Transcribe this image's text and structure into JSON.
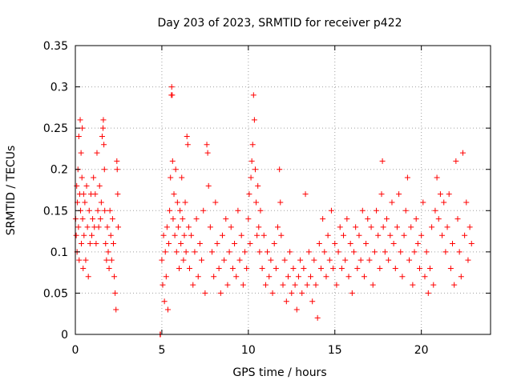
{
  "chart_data": {
    "type": "scatter",
    "title": "Day 203 of 2023, SRMTID for receiver p422",
    "xlabel": "GPS time / hours",
    "ylabel": "SRMTID / TECUs",
    "xlim": [
      0,
      24
    ],
    "ylim": [
      0,
      0.35
    ],
    "xticks": [
      0,
      5,
      10,
      15,
      20
    ],
    "xtick_labels": [
      "0",
      "5",
      "10",
      "15",
      "20"
    ],
    "yticks": [
      0,
      0.05,
      0.1,
      0.15,
      0.2,
      0.25,
      0.3,
      0.35
    ],
    "ytick_labels": [
      "0",
      "0.05",
      "0.1",
      "0.15",
      "0.2",
      "0.25",
      "0.3",
      "0.35"
    ],
    "grid": true,
    "marker": "+",
    "color": "#ff0000",
    "series": [
      {
        "name": "SRMTID",
        "points": [
          [
            0.02,
            0.14
          ],
          [
            0.05,
            0.12
          ],
          [
            0.08,
            0.18
          ],
          [
            0.1,
            0.1
          ],
          [
            0.12,
            0.16
          ],
          [
            0.15,
            0.2
          ],
          [
            0.18,
            0.13
          ],
          [
            0.2,
            0.24
          ],
          [
            0.22,
            0.09
          ],
          [
            0.25,
            0.17
          ],
          [
            0.28,
            0.26
          ],
          [
            0.3,
            0.15
          ],
          [
            0.33,
            0.22
          ],
          [
            0.35,
            0.11
          ],
          [
            0.38,
            0.19
          ],
          [
            0.4,
            0.25
          ],
          [
            0.42,
            0.14
          ],
          [
            0.45,
            0.08
          ],
          [
            0.48,
            0.17
          ],
          [
            0.5,
            0.12
          ],
          [
            0.55,
            0.16
          ],
          [
            0.6,
            0.09
          ],
          [
            0.65,
            0.18
          ],
          [
            0.7,
            0.13
          ],
          [
            0.75,
            0.07
          ],
          [
            0.8,
            0.15
          ],
          [
            0.85,
            0.11
          ],
          [
            0.9,
            0.17
          ],
          [
            0.95,
            0.12
          ],
          [
            1.0,
            0.14
          ],
          [
            1.05,
            0.19
          ],
          [
            1.1,
            0.13
          ],
          [
            1.15,
            0.17
          ],
          [
            1.2,
            0.11
          ],
          [
            1.25,
            0.22
          ],
          [
            1.3,
            0.15
          ],
          [
            1.35,
            0.13
          ],
          [
            1.4,
            0.18
          ],
          [
            1.45,
            0.14
          ],
          [
            1.5,
            0.16
          ],
          [
            1.55,
            0.24
          ],
          [
            1.6,
            0.25
          ],
          [
            1.62,
            0.26
          ],
          [
            1.65,
            0.23
          ],
          [
            1.68,
            0.2
          ],
          [
            1.7,
            0.15
          ],
          [
            1.75,
            0.11
          ],
          [
            1.8,
            0.09
          ],
          [
            1.85,
            0.13
          ],
          [
            1.9,
            0.1
          ],
          [
            1.95,
            0.08
          ],
          [
            2.0,
            0.15
          ],
          [
            2.05,
            0.12
          ],
          [
            2.1,
            0.09
          ],
          [
            2.15,
            0.14
          ],
          [
            2.2,
            0.11
          ],
          [
            2.25,
            0.07
          ],
          [
            2.3,
            0.05
          ],
          [
            2.35,
            0.03
          ],
          [
            2.4,
            0.21
          ],
          [
            2.42,
            0.2
          ],
          [
            2.45,
            0.17
          ],
          [
            2.48,
            0.13
          ],
          [
            4.9,
            0.0
          ],
          [
            4.92,
            0.0
          ],
          [
            5.0,
            0.09
          ],
          [
            5.05,
            0.06
          ],
          [
            5.1,
            0.12
          ],
          [
            5.15,
            0.04
          ],
          [
            5.2,
            0.1
          ],
          [
            5.25,
            0.07
          ],
          [
            5.3,
            0.13
          ],
          [
            5.35,
            0.03
          ],
          [
            5.4,
            0.11
          ],
          [
            5.45,
            0.15
          ],
          [
            5.5,
            0.19
          ],
          [
            5.55,
            0.29
          ],
          [
            5.57,
            0.3
          ],
          [
            5.6,
            0.29
          ],
          [
            5.62,
            0.21
          ],
          [
            5.65,
            0.14
          ],
          [
            5.7,
            0.17
          ],
          [
            5.75,
            0.12
          ],
          [
            5.8,
            0.2
          ],
          [
            5.85,
            0.1
          ],
          [
            5.9,
            0.16
          ],
          [
            5.95,
            0.13
          ],
          [
            6.0,
            0.08
          ],
          [
            6.05,
            0.15
          ],
          [
            6.1,
            0.11
          ],
          [
            6.15,
            0.19
          ],
          [
            6.2,
            0.14
          ],
          [
            6.25,
            0.09
          ],
          [
            6.3,
            0.12
          ],
          [
            6.35,
            0.16
          ],
          [
            6.4,
            0.1
          ],
          [
            6.45,
            0.24
          ],
          [
            6.5,
            0.23
          ],
          [
            6.55,
            0.13
          ],
          [
            6.6,
            0.08
          ],
          [
            6.7,
            0.12
          ],
          [
            6.8,
            0.06
          ],
          [
            6.9,
            0.1
          ],
          [
            7.0,
            0.14
          ],
          [
            7.1,
            0.07
          ],
          [
            7.2,
            0.11
          ],
          [
            7.3,
            0.09
          ],
          [
            7.4,
            0.15
          ],
          [
            7.5,
            0.05
          ],
          [
            7.6,
            0.23
          ],
          [
            7.65,
            0.22
          ],
          [
            7.7,
            0.18
          ],
          [
            7.8,
            0.13
          ],
          [
            7.9,
            0.1
          ],
          [
            8.0,
            0.07
          ],
          [
            8.1,
            0.16
          ],
          [
            8.2,
            0.11
          ],
          [
            8.3,
            0.08
          ],
          [
            8.4,
            0.05
          ],
          [
            8.5,
            0.12
          ],
          [
            8.6,
            0.09
          ],
          [
            8.7,
            0.14
          ],
          [
            8.8,
            0.06
          ],
          [
            8.9,
            0.1
          ],
          [
            9.0,
            0.13
          ],
          [
            9.1,
            0.08
          ],
          [
            9.2,
            0.11
          ],
          [
            9.3,
            0.07
          ],
          [
            9.4,
            0.15
          ],
          [
            9.5,
            0.09
          ],
          [
            9.6,
            0.12
          ],
          [
            9.7,
            0.06
          ],
          [
            9.8,
            0.1
          ],
          [
            9.9,
            0.08
          ],
          [
            10.0,
            0.14
          ],
          [
            10.05,
            0.17
          ],
          [
            10.1,
            0.11
          ],
          [
            10.15,
            0.19
          ],
          [
            10.2,
            0.21
          ],
          [
            10.25,
            0.23
          ],
          [
            10.3,
            0.29
          ],
          [
            10.35,
            0.26
          ],
          [
            10.4,
            0.2
          ],
          [
            10.45,
            0.16
          ],
          [
            10.5,
            0.12
          ],
          [
            10.55,
            0.18
          ],
          [
            10.6,
            0.13
          ],
          [
            10.65,
            0.1
          ],
          [
            10.7,
            0.15
          ],
          [
            10.8,
            0.08
          ],
          [
            10.9,
            0.12
          ],
          [
            11.0,
            0.06
          ],
          [
            11.1,
            0.1
          ],
          [
            11.2,
            0.07
          ],
          [
            11.3,
            0.09
          ],
          [
            11.4,
            0.05
          ],
          [
            11.5,
            0.11
          ],
          [
            11.6,
            0.08
          ],
          [
            11.7,
            0.13
          ],
          [
            11.8,
            0.2
          ],
          [
            11.85,
            0.16
          ],
          [
            11.9,
            0.12
          ],
          [
            12.0,
            0.06
          ],
          [
            12.1,
            0.09
          ],
          [
            12.2,
            0.04
          ],
          [
            12.3,
            0.07
          ],
          [
            12.4,
            0.1
          ],
          [
            12.5,
            0.05
          ],
          [
            12.6,
            0.08
          ],
          [
            12.7,
            0.06
          ],
          [
            12.8,
            0.03
          ],
          [
            12.9,
            0.07
          ],
          [
            13.0,
            0.09
          ],
          [
            13.1,
            0.05
          ],
          [
            13.2,
            0.08
          ],
          [
            13.3,
            0.17
          ],
          [
            13.4,
            0.06
          ],
          [
            13.5,
            0.1
          ],
          [
            13.6,
            0.07
          ],
          [
            13.7,
            0.04
          ],
          [
            13.8,
            0.09
          ],
          [
            13.9,
            0.06
          ],
          [
            14.0,
            0.02
          ],
          [
            14.1,
            0.11
          ],
          [
            14.2,
            0.08
          ],
          [
            14.3,
            0.14
          ],
          [
            14.4,
            0.1
          ],
          [
            14.5,
            0.07
          ],
          [
            14.6,
            0.12
          ],
          [
            14.7,
            0.09
          ],
          [
            14.8,
            0.15
          ],
          [
            14.9,
            0.08
          ],
          [
            15.0,
            0.11
          ],
          [
            15.1,
            0.06
          ],
          [
            15.2,
            0.1
          ],
          [
            15.3,
            0.13
          ],
          [
            15.4,
            0.08
          ],
          [
            15.5,
            0.12
          ],
          [
            15.6,
            0.09
          ],
          [
            15.7,
            0.14
          ],
          [
            15.8,
            0.07
          ],
          [
            15.9,
            0.11
          ],
          [
            16.0,
            0.05
          ],
          [
            16.1,
            0.1
          ],
          [
            16.2,
            0.13
          ],
          [
            16.3,
            0.08
          ],
          [
            16.4,
            0.12
          ],
          [
            16.5,
            0.09
          ],
          [
            16.6,
            0.15
          ],
          [
            16.7,
            0.07
          ],
          [
            16.8,
            0.11
          ],
          [
            16.9,
            0.14
          ],
          [
            17.0,
            0.09
          ],
          [
            17.1,
            0.13
          ],
          [
            17.2,
            0.06
          ],
          [
            17.3,
            0.1
          ],
          [
            17.4,
            0.15
          ],
          [
            17.5,
            0.12
          ],
          [
            17.6,
            0.08
          ],
          [
            17.7,
            0.17
          ],
          [
            17.75,
            0.21
          ],
          [
            17.8,
            0.13
          ],
          [
            17.9,
            0.1
          ],
          [
            18.0,
            0.14
          ],
          [
            18.1,
            0.09
          ],
          [
            18.2,
            0.12
          ],
          [
            18.3,
            0.16
          ],
          [
            18.4,
            0.11
          ],
          [
            18.5,
            0.08
          ],
          [
            18.6,
            0.13
          ],
          [
            18.7,
            0.17
          ],
          [
            18.8,
            0.1
          ],
          [
            18.9,
            0.07
          ],
          [
            19.0,
            0.12
          ],
          [
            19.1,
            0.15
          ],
          [
            19.2,
            0.19
          ],
          [
            19.3,
            0.09
          ],
          [
            19.4,
            0.13
          ],
          [
            19.5,
            0.06
          ],
          [
            19.6,
            0.1
          ],
          [
            19.7,
            0.14
          ],
          [
            19.8,
            0.11
          ],
          [
            19.9,
            0.08
          ],
          [
            20.0,
            0.12
          ],
          [
            20.1,
            0.16
          ],
          [
            20.2,
            0.07
          ],
          [
            20.3,
            0.1
          ],
          [
            20.4,
            0.05
          ],
          [
            20.5,
            0.08
          ],
          [
            20.6,
            0.13
          ],
          [
            20.7,
            0.06
          ],
          [
            20.8,
            0.15
          ],
          [
            20.9,
            0.19
          ],
          [
            21.0,
            0.14
          ],
          [
            21.1,
            0.17
          ],
          [
            21.2,
            0.12
          ],
          [
            21.3,
            0.16
          ],
          [
            21.4,
            0.1
          ],
          [
            21.5,
            0.13
          ],
          [
            21.6,
            0.17
          ],
          [
            21.7,
            0.08
          ],
          [
            21.8,
            0.11
          ],
          [
            21.9,
            0.06
          ],
          [
            22.0,
            0.21
          ],
          [
            22.1,
            0.14
          ],
          [
            22.2,
            0.1
          ],
          [
            22.3,
            0.07
          ],
          [
            22.4,
            0.22
          ],
          [
            22.5,
            0.12
          ],
          [
            22.6,
            0.16
          ],
          [
            22.7,
            0.09
          ],
          [
            22.8,
            0.13
          ],
          [
            22.9,
            0.11
          ]
        ]
      }
    ]
  }
}
